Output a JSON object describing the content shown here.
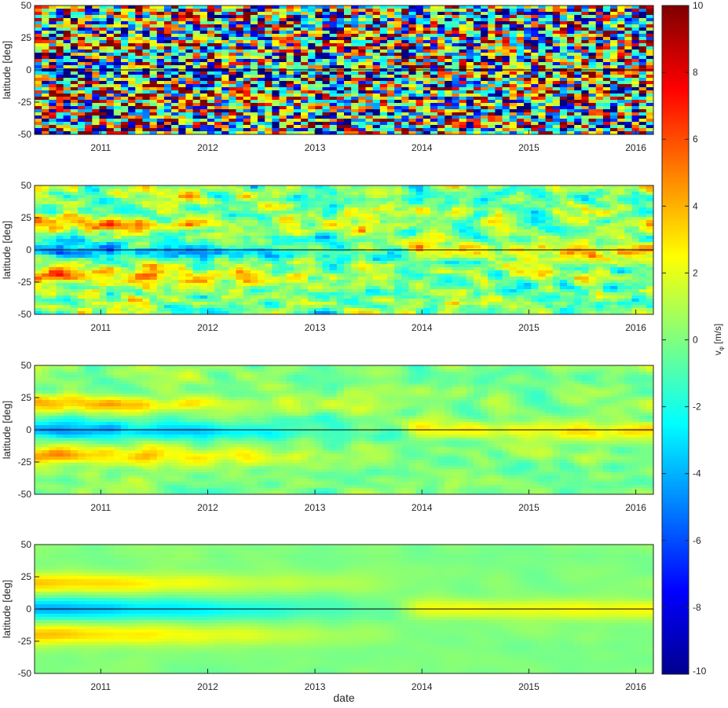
{
  "chart_data": [
    {
      "type": "heatmap",
      "panel": 1,
      "ylabel": "latitude [deg]",
      "ylim": [
        -50,
        50
      ],
      "yticks": [
        -50,
        -25,
        0,
        25,
        50
      ],
      "xlim": [
        "2010-05-20",
        "2016-03-01"
      ],
      "xticks": [
        "2011",
        "2012",
        "2013",
        "2014",
        "2015",
        "2016"
      ],
      "zero_line": true,
      "smoothing": "none",
      "colorbar_range": [
        -10,
        10
      ],
      "grid": false
    },
    {
      "type": "heatmap",
      "panel": 2,
      "ylabel": "latitude [deg]",
      "ylim": [
        -50,
        50
      ],
      "yticks": [
        -50,
        -25,
        0,
        25,
        50
      ],
      "xlim": [
        "2010-05-20",
        "2016-03-01"
      ],
      "xticks": [
        "2011",
        "2012",
        "2013",
        "2014",
        "2015",
        "2016"
      ],
      "zero_line": true,
      "smoothing": "light",
      "colorbar_range": [
        -10,
        10
      ],
      "grid": false
    },
    {
      "type": "heatmap",
      "panel": 3,
      "ylabel": "latitude [deg]",
      "ylim": [
        -50,
        50
      ],
      "yticks": [
        -50,
        -25,
        0,
        25,
        50
      ],
      "xlim": [
        "2010-05-20",
        "2016-03-01"
      ],
      "xticks": [
        "2011",
        "2012",
        "2013",
        "2014",
        "2015",
        "2016"
      ],
      "zero_line": true,
      "smoothing": "medium",
      "colorbar_range": [
        -10,
        10
      ],
      "grid": false
    },
    {
      "type": "heatmap",
      "panel": 4,
      "ylabel": "latitude [deg]",
      "xlabel": "date",
      "ylim": [
        -50,
        50
      ],
      "yticks": [
        -50,
        -25,
        0,
        25,
        50
      ],
      "xlim": [
        "2010-05-20",
        "2016-03-01"
      ],
      "xticks": [
        "2011",
        "2012",
        "2013",
        "2014",
        "2015",
        "2016"
      ],
      "zero_line": true,
      "smoothing": "strong",
      "colorbar_range": [
        -10,
        10
      ],
      "grid": false
    }
  ],
  "colorbar": {
    "colormap": "jet",
    "min": -10,
    "max": 10,
    "ticks": [
      "10",
      "8",
      "6",
      "4",
      "2",
      "0",
      "-2",
      "-4",
      "-6",
      "-8",
      "-10"
    ],
    "label_main": "v",
    "label_sub": "φ",
    "label_unit": " [m/s]"
  },
  "labels": {
    "ylabel": "latitude [deg]",
    "xlabel": "date"
  }
}
